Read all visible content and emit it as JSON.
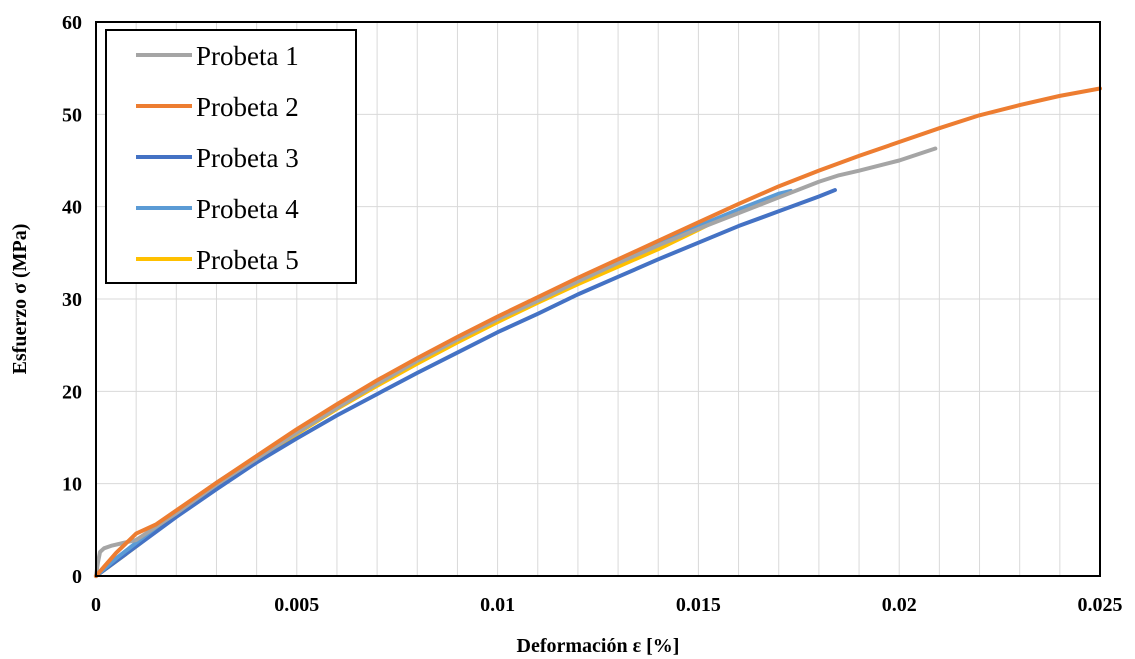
{
  "chart_data": {
    "type": "line",
    "title": "",
    "xlabel": "Deformación ε [%]",
    "ylabel": "Esfuerzo σ (MPa)",
    "xlim": [
      0,
      0.025
    ],
    "ylim": [
      0,
      60
    ],
    "x_ticks": [
      0,
      0.005,
      0.01,
      0.015,
      0.02,
      0.025
    ],
    "x_tick_labels": [
      "0",
      "0.005",
      "0.01",
      "0.015",
      "0.02",
      "0.025"
    ],
    "y_ticks": [
      0,
      10,
      20,
      30,
      40,
      50,
      60
    ],
    "y_tick_labels": [
      "0",
      "10",
      "20",
      "30",
      "40",
      "50",
      "60"
    ],
    "grid": true,
    "legend_position": "top-left",
    "series": [
      {
        "name": "Probeta 1",
        "color": "#a5a5a5",
        "x": [
          0,
          5e-05,
          0.0001,
          0.0002,
          0.0004,
          0.0007,
          0.001,
          0.002,
          0.003,
          0.004,
          0.005,
          0.006,
          0.007,
          0.008,
          0.009,
          0.01,
          0.011,
          0.012,
          0.013,
          0.014,
          0.015,
          0.016,
          0.017,
          0.018,
          0.0185,
          0.019,
          0.02,
          0.0209
        ],
        "y": [
          0,
          1.5,
          2.6,
          3.0,
          3.3,
          3.6,
          3.9,
          6.8,
          9.9,
          12.7,
          15.5,
          18.2,
          20.8,
          23.3,
          25.6,
          27.8,
          29.8,
          31.9,
          33.9,
          35.8,
          37.6,
          39.3,
          41.0,
          42.7,
          43.4,
          43.9,
          45.0,
          46.3
        ]
      },
      {
        "name": "Probeta 2",
        "color": "#ed7d31",
        "x": [
          0,
          0.0005,
          0.001,
          0.0015,
          0.002,
          0.003,
          0.004,
          0.005,
          0.006,
          0.007,
          0.008,
          0.009,
          0.01,
          0.011,
          0.012,
          0.013,
          0.014,
          0.015,
          0.016,
          0.017,
          0.018,
          0.019,
          0.02,
          0.021,
          0.022,
          0.023,
          0.024,
          0.025
        ],
        "y": [
          0,
          2.5,
          4.6,
          5.6,
          7.1,
          10.1,
          13.0,
          15.9,
          18.6,
          21.2,
          23.6,
          25.9,
          28.1,
          30.2,
          32.3,
          34.3,
          36.3,
          38.3,
          40.3,
          42.2,
          43.9,
          45.5,
          47.0,
          48.5,
          49.9,
          51.0,
          52.0,
          52.8
        ]
      },
      {
        "name": "Probeta 3",
        "color": "#4472c4",
        "x": [
          0,
          0.0005,
          0.001,
          0.002,
          0.003,
          0.004,
          0.005,
          0.006,
          0.007,
          0.008,
          0.009,
          0.01,
          0.011,
          0.012,
          0.013,
          0.014,
          0.015,
          0.016,
          0.017,
          0.018,
          0.0184
        ],
        "y": [
          0,
          1.6,
          3.2,
          6.4,
          9.4,
          12.3,
          14.9,
          17.4,
          19.7,
          22.0,
          24.2,
          26.4,
          28.4,
          30.5,
          32.4,
          34.3,
          36.1,
          37.9,
          39.5,
          41.1,
          41.8
        ]
      },
      {
        "name": "Probeta 4",
        "color": "#5b9bd5",
        "x": [
          0,
          0.0005,
          0.001,
          0.002,
          0.003,
          0.004,
          0.005,
          0.006,
          0.007,
          0.008,
          0.009,
          0.01,
          0.011,
          0.012,
          0.013,
          0.014,
          0.015,
          0.016,
          0.017,
          0.0173
        ],
        "y": [
          0,
          1.9,
          3.6,
          7.0,
          10.1,
          12.9,
          15.8,
          18.5,
          21.0,
          23.4,
          25.7,
          27.9,
          30.0,
          32.0,
          34.0,
          36.0,
          37.9,
          39.7,
          41.4,
          41.7
        ]
      },
      {
        "name": "Probeta 5",
        "color": "#ffc000",
        "x": [
          0,
          0.0005,
          0.001,
          0.002,
          0.003,
          0.004,
          0.005,
          0.006,
          0.007,
          0.008,
          0.009,
          0.01,
          0.011,
          0.012,
          0.013,
          0.014,
          0.015,
          0.0155
        ],
        "y": [
          0,
          1.6,
          3.2,
          6.6,
          9.7,
          12.6,
          15.4,
          18.1,
          20.6,
          23.0,
          25.3,
          27.5,
          29.6,
          31.6,
          33.5,
          35.4,
          37.5,
          38.6
        ]
      }
    ]
  }
}
